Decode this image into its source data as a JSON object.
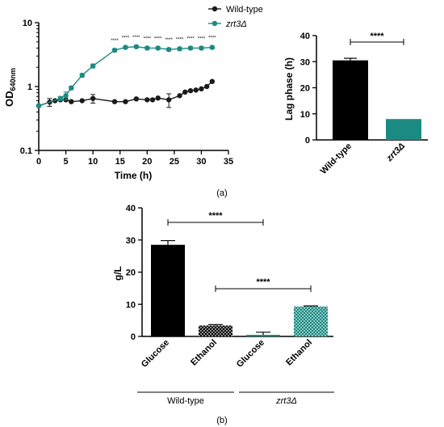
{
  "caption_a": "(a)",
  "caption_b": "(b)",
  "colors": {
    "wildtype": "#1a1a1a",
    "zrt3": "#1b8a82",
    "black": "#000000"
  },
  "chart_data": [
    {
      "type": "line",
      "ylabel_main": "OD",
      "ylabel_sub": "640nm",
      "xlabel": "Time (h)",
      "yscale": "log",
      "ylim": [
        0.1,
        10
      ],
      "xlim": [
        0,
        35
      ],
      "yticks": [
        {
          "v": 0.1,
          "label": "0.1"
        },
        {
          "v": 1,
          "label": "1"
        },
        {
          "v": 10,
          "label": "10"
        }
      ],
      "xticks": [
        "0",
        "5",
        "10",
        "15",
        "20",
        "25",
        "30",
        "35"
      ],
      "legend_position": "top-right",
      "series": [
        {
          "name": "Wild-type",
          "color": "#1a1a1a",
          "points": [
            {
              "x": 0,
              "y": 0.5,
              "err": 0.03
            },
            {
              "x": 2,
              "y": 0.57,
              "err": 0.08
            },
            {
              "x": 3,
              "y": 0.6,
              "err": 0.03
            },
            {
              "x": 4,
              "y": 0.62,
              "err": 0.03
            },
            {
              "x": 5,
              "y": 0.62,
              "err": 0.03
            },
            {
              "x": 6,
              "y": 0.58,
              "err": 0.03
            },
            {
              "x": 8,
              "y": 0.6,
              "err": 0.03
            },
            {
              "x": 10,
              "y": 0.65,
              "err": 0.1
            },
            {
              "x": 14,
              "y": 0.58,
              "err": 0.03
            },
            {
              "x": 16,
              "y": 0.58,
              "err": 0.03
            },
            {
              "x": 18,
              "y": 0.64,
              "err": 0.03
            },
            {
              "x": 20,
              "y": 0.62,
              "err": 0.03
            },
            {
              "x": 21,
              "y": 0.62,
              "err": 0.03
            },
            {
              "x": 22,
              "y": 0.66,
              "err": 0.03
            },
            {
              "x": 24,
              "y": 0.62,
              "err": 0.15
            },
            {
              "x": 26,
              "y": 0.72,
              "err": 0.04
            },
            {
              "x": 27,
              "y": 0.82,
              "err": 0.04
            },
            {
              "x": 28,
              "y": 0.86,
              "err": 0.03
            },
            {
              "x": 29,
              "y": 0.88,
              "err": 0.03
            },
            {
              "x": 30,
              "y": 0.92,
              "err": 0.03
            },
            {
              "x": 31,
              "y": 1.0,
              "err": 0.04
            },
            {
              "x": 32,
              "y": 1.2,
              "err": 0.04
            }
          ]
        },
        {
          "name": "zrt3Δ",
          "color": "#1b8a82",
          "points": [
            {
              "x": 0,
              "y": 0.5,
              "err": 0.03
            },
            {
              "x": 4,
              "y": 0.65,
              "err": 0.05
            },
            {
              "x": 5,
              "y": 0.72,
              "err": 0.1
            },
            {
              "x": 6,
              "y": 0.95,
              "err": 0.06
            },
            {
              "x": 8,
              "y": 1.5,
              "err": 0.1
            },
            {
              "x": 10,
              "y": 2.1,
              "err": 0.15
            },
            {
              "x": 14,
              "y": 3.7,
              "err": 0.2
            },
            {
              "x": 16,
              "y": 4.1,
              "err": 0.2
            },
            {
              "x": 18,
              "y": 4.2,
              "err": 0.2
            },
            {
              "x": 20,
              "y": 4.0,
              "err": 0.2
            },
            {
              "x": 22,
              "y": 4.0,
              "err": 0.2
            },
            {
              "x": 24,
              "y": 3.8,
              "err": 0.2
            },
            {
              "x": 26,
              "y": 3.9,
              "err": 0.2
            },
            {
              "x": 28,
              "y": 4.0,
              "err": 0.2
            },
            {
              "x": 30,
              "y": 4.0,
              "err": 0.2
            },
            {
              "x": 32,
              "y": 4.1,
              "err": 0.2
            }
          ]
        }
      ]
    },
    {
      "type": "bar",
      "ylabel": "Lag phase (h)",
      "ylim": [
        0,
        40
      ],
      "yticks": [
        "0",
        "10",
        "20",
        "30",
        "40"
      ],
      "categories": [
        "Wild-type",
        "zrt3Δ"
      ],
      "values": [
        30.5,
        8.0
      ],
      "errors": [
        0.8,
        0
      ],
      "colors": [
        "#000000",
        "#1b8a82"
      ],
      "significance": "****"
    },
    {
      "type": "bar",
      "ylabel": "g/L",
      "ylim": [
        0,
        40
      ],
      "yticks": [
        "0",
        "10",
        "20",
        "30",
        "40"
      ],
      "categories": [
        "Glucose",
        "Ethanol",
        "Glucose",
        "Ethanol"
      ],
      "values": [
        28.5,
        3.4,
        0.5,
        9.3
      ],
      "errors": [
        1.3,
        0.3,
        0.8,
        0.2
      ],
      "fills": [
        "solid-black",
        "hatched-black",
        "solid-teal",
        "hatched-teal"
      ],
      "groups": [
        {
          "name": "Wild-type",
          "members": [
            0,
            1
          ]
        },
        {
          "name": "zrt3Δ",
          "members": [
            2,
            3
          ]
        }
      ],
      "significance": [
        {
          "from": 0,
          "to": 2,
          "label": "****"
        },
        {
          "from": 1,
          "to": 3,
          "label": "****"
        }
      ]
    }
  ]
}
